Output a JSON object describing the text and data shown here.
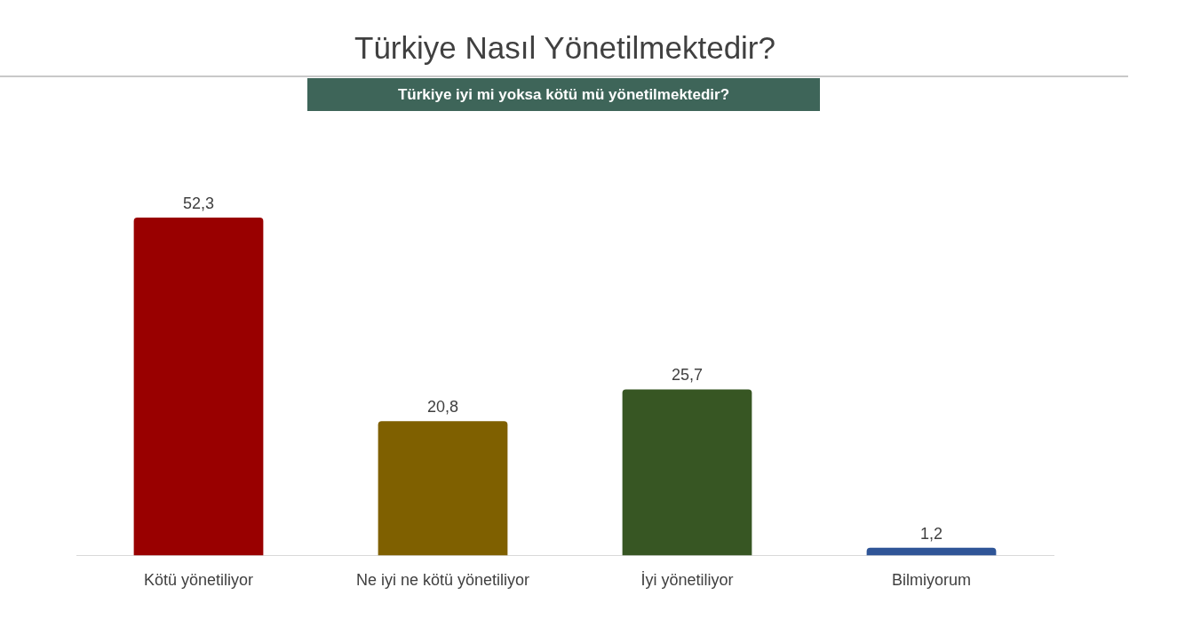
{
  "chart_data": {
    "type": "bar",
    "title": "Türkiye Nasıl Yönetilmektedir?",
    "subtitle": "Türkiye iyi mi yoksa kötü mü yönetilmektedir?",
    "categories": [
      "Kötü yönetiliyor",
      "Ne iyi ne kötü yönetiliyor",
      "İyi yönetiliyor",
      "Bilmiyorum"
    ],
    "values": [
      52.3,
      20.8,
      25.7,
      1.2
    ],
    "colors": [
      "#990000",
      "#7f6000",
      "#375623",
      "#2f5597"
    ],
    "value_labels": [
      "52,3",
      "20,8",
      "25,7",
      "1,2"
    ]
  }
}
